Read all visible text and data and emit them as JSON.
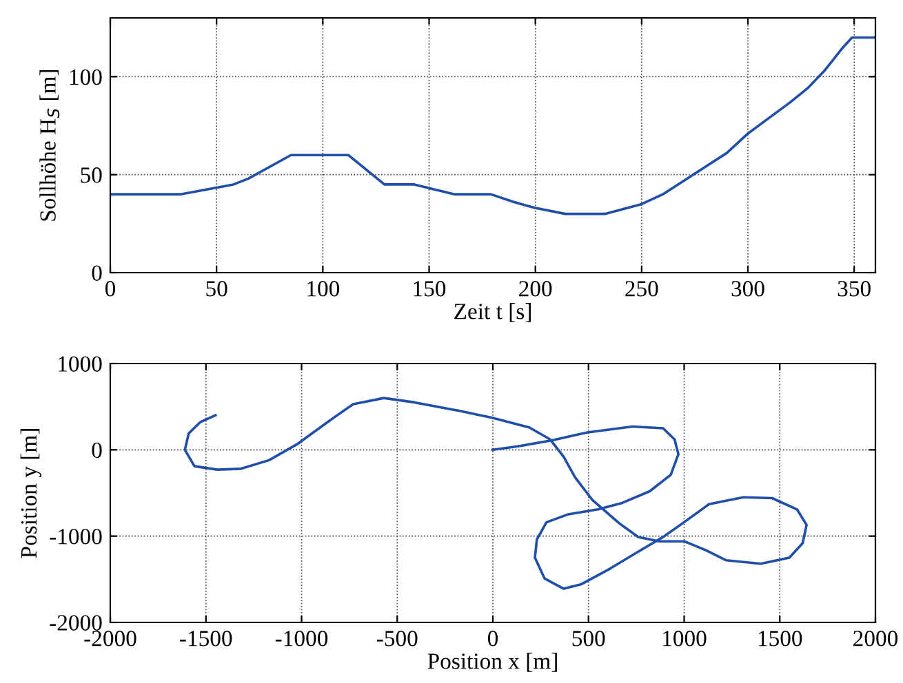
{
  "chart_data": [
    {
      "type": "line",
      "xlabel": "Zeit t [s]",
      "ylabel": "Sollhöhe H$_{S}$ [m]",
      "xlim": [
        0,
        360
      ],
      "ylim": [
        0,
        130
      ],
      "xticks": [
        0,
        50,
        100,
        150,
        200,
        250,
        300,
        350
      ],
      "yticks": [
        0,
        50,
        100
      ],
      "grid": true,
      "series": [
        {
          "color": "#1f4fa8",
          "x": [
            0,
            33,
            58,
            65,
            85,
            112,
            129,
            143,
            162,
            179,
            190,
            200,
            214,
            233,
            250,
            260,
            280,
            290,
            300,
            310,
            320,
            328,
            336,
            344,
            349,
            360
          ],
          "values": [
            40,
            40,
            45,
            48,
            60,
            60,
            45,
            45,
            40,
            40,
            36,
            33,
            30,
            30,
            35,
            40,
            54,
            61,
            71,
            79,
            87,
            94,
            103,
            114,
            120,
            120
          ]
        }
      ]
    },
    {
      "type": "line",
      "xlabel": "Position x [m]",
      "ylabel": "Position y [m]",
      "xlim": [
        -2000,
        2000
      ],
      "ylim": [
        -2000,
        1000
      ],
      "xticks": [
        -2000,
        -1500,
        -1000,
        -500,
        0,
        500,
        1000,
        1500,
        2000
      ],
      "yticks": [
        -2000,
        -1000,
        0,
        1000
      ],
      "grid": true,
      "series": [
        {
          "color": "#1f4fa8",
          "x": [
            0,
            130,
            310,
            490,
            730,
            890,
            950,
            970,
            930,
            820,
            670,
            550,
            390,
            280,
            230,
            220,
            270,
            370,
            460,
            610,
            760,
            890,
            980,
            1130,
            1310,
            1460,
            1590,
            1640,
            1620,
            1550,
            1400,
            1220,
            1110,
            1000,
            870,
            760,
            660,
            520,
            430,
            370,
            300,
            190,
            0,
            -170,
            -410,
            -570,
            -730,
            -840,
            -1020,
            -1170,
            -1320,
            -1440,
            -1560,
            -1610,
            -1590,
            -1530,
            -1450
          ],
          "values": [
            0,
            40,
            110,
            200,
            270,
            250,
            120,
            -50,
            -290,
            -480,
            -620,
            -690,
            -750,
            -840,
            -1040,
            -1250,
            -1490,
            -1610,
            -1560,
            -1380,
            -1180,
            -1010,
            -870,
            -630,
            -550,
            -560,
            -690,
            -870,
            -1080,
            -1250,
            -1320,
            -1280,
            -1160,
            -1060,
            -1060,
            -1010,
            -850,
            -580,
            -320,
            -80,
            120,
            260,
            370,
            450,
            550,
            600,
            530,
            360,
            70,
            -120,
            -220,
            -230,
            -190,
            0,
            190,
            320,
            400
          ]
        }
      ]
    }
  ]
}
